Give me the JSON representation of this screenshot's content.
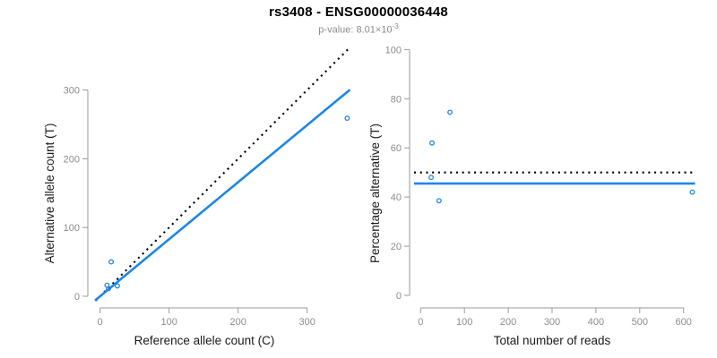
{
  "header": {
    "title": "rs3408 - ENSG00000036448",
    "subtitle_prefix": "p-value: ",
    "subtitle_value": "8.01×10",
    "subtitle_exponent": "-3"
  },
  "colors": {
    "accent_blue": "#1e86e5",
    "line_black": "#000000",
    "axis_gray": "#999999",
    "tick_label_gray": "#8c8c8c",
    "label_black": "#1a1a1a"
  },
  "chart_data": [
    {
      "type": "scatter",
      "name": "allele-count-scatter",
      "title": "",
      "xlabel": "Reference allele count (C)",
      "ylabel": "Alternative allele count (T)",
      "xlim": [
        0,
        360
      ],
      "ylim": [
        0,
        360
      ],
      "xticks": [
        0,
        100,
        200,
        300
      ],
      "yticks": [
        0,
        100,
        200,
        300
      ],
      "grid": false,
      "points": [
        [
          16,
          50
        ],
        [
          10,
          16
        ],
        [
          12,
          11
        ],
        [
          25,
          15
        ],
        [
          358,
          259
        ]
      ],
      "lines": [
        {
          "name": "identity-line",
          "slope": 1,
          "intercept": 0,
          "style": "dotted",
          "color": "black"
        },
        {
          "name": "fit-line",
          "slope": 0.83,
          "intercept": 0,
          "style": "solid",
          "color": "blue"
        }
      ]
    },
    {
      "type": "scatter",
      "name": "percentage-reads-scatter",
      "title": "",
      "xlabel": "Total number of reads",
      "ylabel": "Percentage alternative (T)",
      "xlim": [
        0,
        625
      ],
      "ylim": [
        0,
        100
      ],
      "xticks": [
        0,
        100,
        200,
        300,
        400,
        500,
        600
      ],
      "yticks": [
        0,
        20,
        40,
        60,
        80,
        100
      ],
      "grid": false,
      "points": [
        [
          67,
          74.5
        ],
        [
          26,
          62
        ],
        [
          24,
          48
        ],
        [
          42,
          38.5
        ],
        [
          620,
          42
        ]
      ],
      "lines": [
        {
          "name": "expected-50pct-line",
          "hline": 50,
          "style": "dotted",
          "color": "black"
        },
        {
          "name": "fit-percentage-line",
          "hline": 45.5,
          "style": "solid",
          "color": "blue"
        }
      ]
    }
  ]
}
